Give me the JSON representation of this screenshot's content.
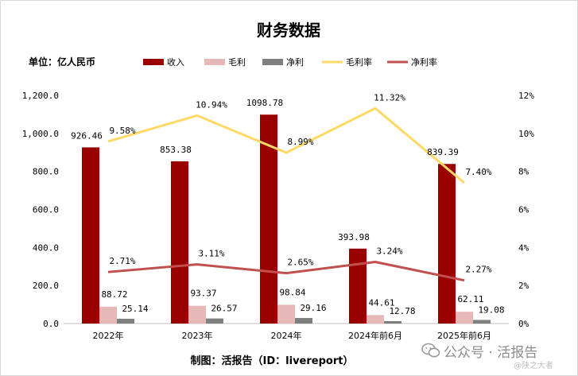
{
  "chart_data": {
    "type": "bar",
    "title": "财务数据",
    "unit_label": "单位：亿人民币",
    "categories": [
      "2022年",
      "2023年",
      "2024年",
      "2024年前6月",
      "2025年前6月"
    ],
    "series": [
      {
        "name": "收入",
        "kind": "bar",
        "axis": "left",
        "color": "#990000",
        "values": [
          926.46,
          853.38,
          1098.78,
          393.98,
          839.39
        ],
        "labels": [
          "926.46",
          "853.38",
          "1098.78",
          "393.98",
          "839.39"
        ]
      },
      {
        "name": "毛利",
        "kind": "bar",
        "axis": "left",
        "color": "#e6b8b8",
        "values": [
          88.72,
          93.37,
          98.84,
          44.61,
          62.11
        ],
        "labels": [
          "88.72",
          "93.37",
          "98.84",
          "44.61",
          "62.11"
        ]
      },
      {
        "name": "净利",
        "kind": "bar",
        "axis": "left",
        "color": "#7f7f7f",
        "values": [
          25.14,
          26.57,
          29.16,
          12.78,
          19.08
        ],
        "labels": [
          "25.14",
          "26.57",
          "29.16",
          "12.78",
          "19.08"
        ]
      },
      {
        "name": "毛利率",
        "kind": "line",
        "axis": "right",
        "color": "#ffd966",
        "values": [
          9.58,
          10.94,
          8.99,
          11.32,
          7.4
        ],
        "labels": [
          "9.58%",
          "10.94%",
          "8.99%",
          "11.32%",
          "7.40%"
        ]
      },
      {
        "name": "净利率",
        "kind": "line",
        "axis": "right",
        "color": "#c0504d",
        "values": [
          2.71,
          3.11,
          2.65,
          3.24,
          2.27
        ],
        "labels": [
          "2.71%",
          "3.11%",
          "2.65%",
          "3.24%",
          "2.27%"
        ]
      }
    ],
    "y_left": {
      "ylim": [
        0,
        1200
      ],
      "ticks": [
        "0.0",
        "200.0",
        "400.0",
        "600.0",
        "800.0",
        "1,000.0",
        "1,200.0"
      ]
    },
    "y_right": {
      "ylim": [
        0,
        12
      ],
      "ticks": [
        "0%",
        "2%",
        "4%",
        "6%",
        "8%",
        "10%",
        "12%"
      ]
    },
    "grid": false,
    "legend": "top",
    "footer": "制图：活报告（ID：livereport）"
  },
  "watermark": {
    "text": "公众号 · 活报告",
    "sub": "@陕之大者"
  }
}
